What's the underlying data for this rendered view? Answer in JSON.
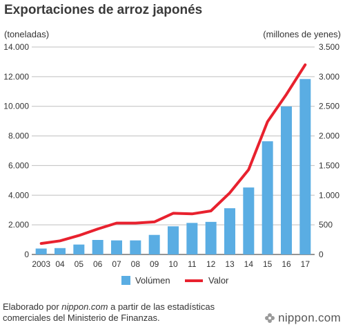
{
  "title": "Exportaciones de arroz japonés",
  "left_axis_unit": "(toneladas)",
  "right_axis_unit": "(millones de yenes)",
  "footer": {
    "prefix": "Elaborado por ",
    "source": "nippon.com",
    "suffix": " a partir de las estadísticas comerciales del Ministerio de Finanzas."
  },
  "brand": {
    "logo_text": "nippon",
    "logo_suffix": ".com",
    "mark_icon": "nippon-flower-icon"
  },
  "colors": {
    "bar": "#5aade3",
    "line": "#e8212e",
    "grid": "#bfbfbf",
    "axis": "#555555"
  },
  "chart_data": {
    "type": "bar",
    "categories": [
      "2003",
      "04",
      "05",
      "06",
      "07",
      "08",
      "09",
      "10",
      "11",
      "12",
      "13",
      "14",
      "15",
      "16",
      "17"
    ],
    "series": [
      {
        "name": "Volúmen",
        "type": "bar",
        "axis": "left",
        "values": [
          400,
          430,
          670,
          980,
          950,
          950,
          1320,
          1900,
          2130,
          2200,
          3120,
          4520,
          7640,
          9990,
          11840
        ]
      },
      {
        "name": "Valor",
        "type": "line",
        "axis": "right",
        "values": [
          185,
          230,
          320,
          430,
          530,
          530,
          550,
          695,
          685,
          735,
          1040,
          1430,
          2240,
          2700,
          3200
        ]
      }
    ],
    "left_axis": {
      "ylim": [
        0,
        14000
      ],
      "ticks": [
        0,
        2000,
        4000,
        6000,
        8000,
        10000,
        12000,
        14000
      ],
      "tick_labels": [
        "0",
        "2.000",
        "4.000",
        "6.000",
        "8.000",
        "10.000",
        "12.000",
        "14.000"
      ]
    },
    "right_axis": {
      "ylim": [
        0,
        3500
      ],
      "ticks": [
        0,
        500,
        1000,
        1500,
        2000,
        2500,
        3000,
        3500
      ],
      "tick_labels": [
        "0",
        "500",
        "1.000",
        "1.500",
        "2.000",
        "2.500",
        "3.000",
        "3.500"
      ]
    },
    "grid": "horizontal",
    "legend": "bottom-center"
  }
}
